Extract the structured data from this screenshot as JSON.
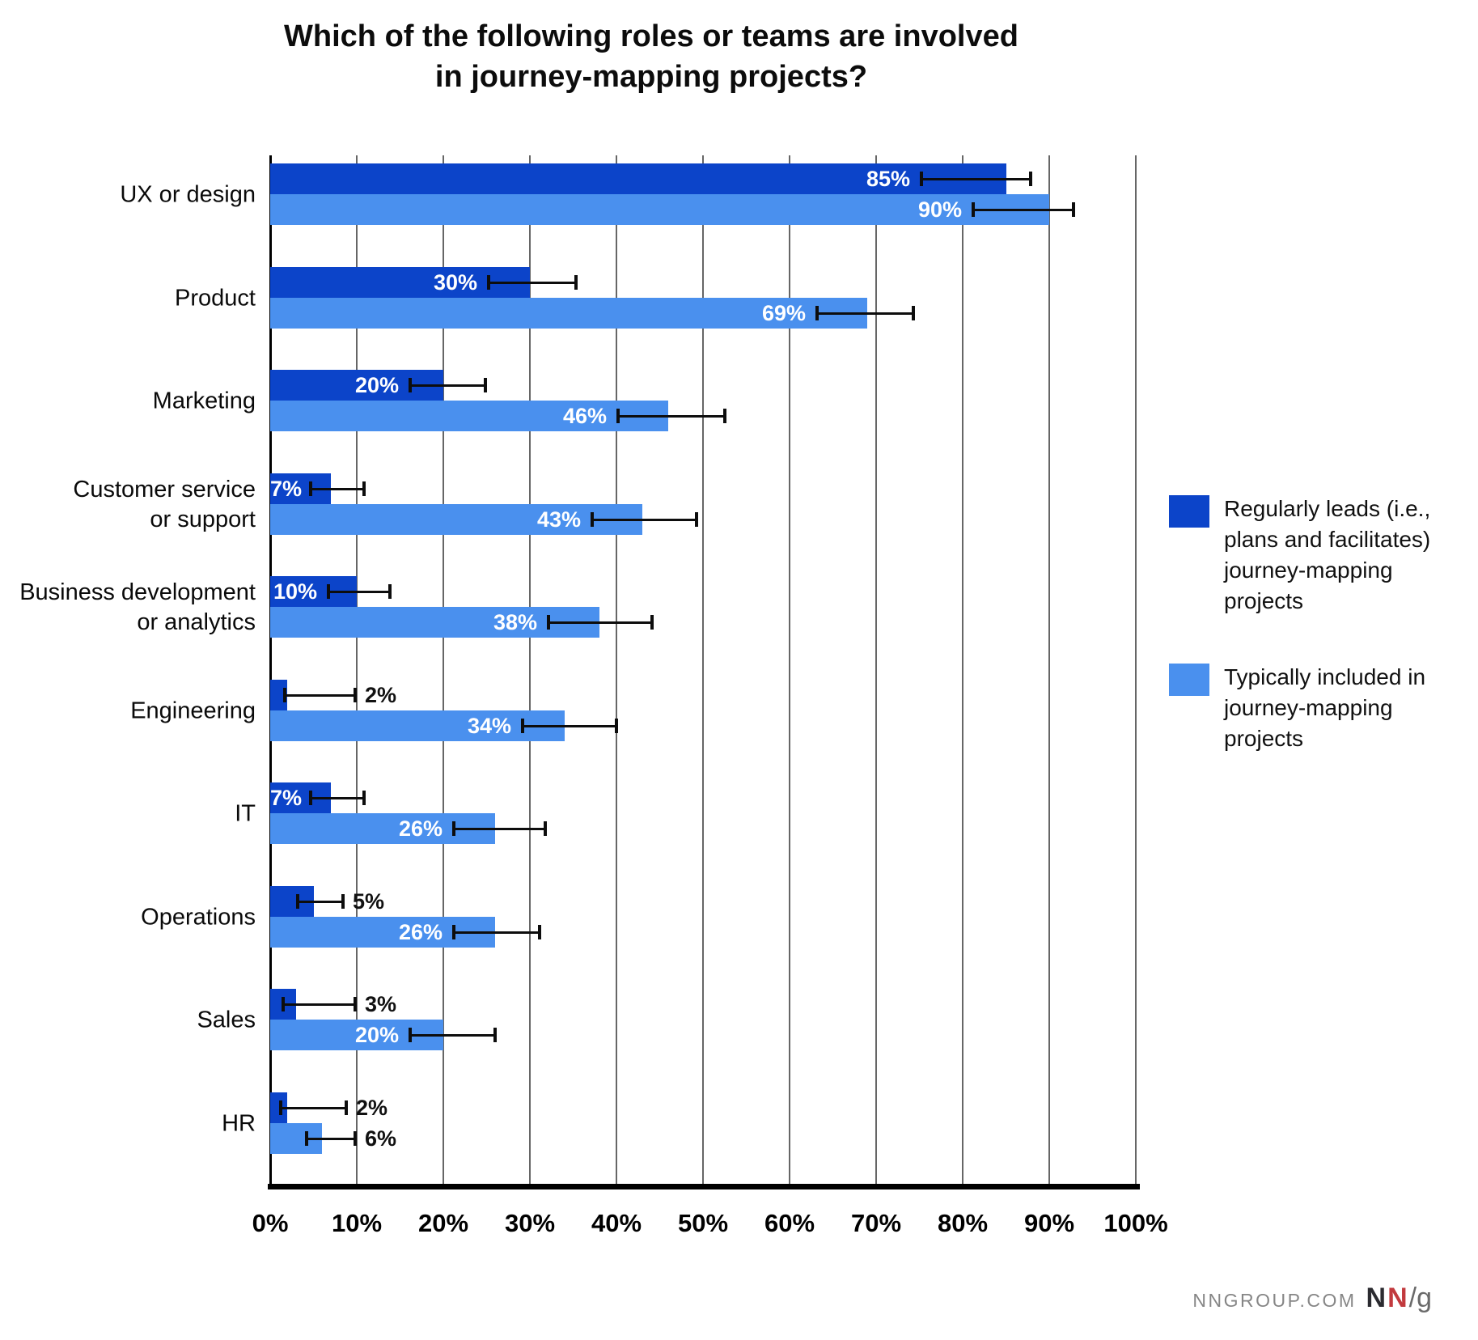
{
  "title": {
    "line1": "Which of the following roles or teams are involved",
    "line2": "in journey-mapping projects?"
  },
  "chart_data": {
    "type": "bar",
    "orientation": "horizontal",
    "title": "Which of the following roles or teams are involved in journey-mapping projects?",
    "xlabel": "",
    "ylabel": "",
    "xlim": [
      0,
      100
    ],
    "grid": true,
    "legend_position": "right",
    "value_suffix": "%",
    "label_inside_threshold": 7,
    "categories": [
      [
        "UX or design"
      ],
      [
        "Product"
      ],
      [
        "Marketing"
      ],
      [
        "Customer service",
        "or support"
      ],
      [
        "Business development",
        "or analytics"
      ],
      [
        "Engineering"
      ],
      [
        "IT"
      ],
      [
        "Operations"
      ],
      [
        "Sales"
      ],
      [
        "HR"
      ]
    ],
    "series": [
      {
        "name": "Regularly leads (i.e., plans and facilitates) journey-mapping projects",
        "color": "#0c44c9",
        "values": [
          85,
          30,
          20,
          7,
          10,
          2,
          7,
          5,
          3,
          2
        ],
        "labels": [
          "85%",
          "30%",
          "20%",
          "7%",
          "10%",
          "2%",
          "7%",
          "5%",
          "3%",
          "2%"
        ],
        "error_low": [
          75,
          25,
          16,
          4.5,
          6.5,
          1.5,
          4.5,
          3,
          1.3,
          1
        ],
        "error_high": [
          88,
          35.5,
          25,
          11,
          14,
          10,
          11,
          8.6,
          10,
          9
        ]
      },
      {
        "name": "Typically included in journey-mapping projects",
        "color": "#4a90ee",
        "values": [
          90,
          69,
          46,
          43,
          38,
          34,
          26,
          26,
          20,
          6
        ],
        "labels": [
          "90%",
          "69%",
          "46%",
          "43%",
          "38%",
          "34%",
          "26%",
          "26%",
          "20%",
          "6%"
        ],
        "error_low": [
          81,
          63,
          40,
          37,
          32,
          29,
          21,
          21,
          16,
          4
        ],
        "error_high": [
          93,
          74.5,
          52.7,
          49.4,
          44.3,
          40.2,
          32,
          31.3,
          26.2,
          10
        ]
      }
    ],
    "xticks": [
      "0%",
      "10%",
      "20%",
      "30%",
      "40%",
      "50%",
      "60%",
      "70%",
      "80%",
      "90%",
      "100%"
    ]
  },
  "legend": {
    "items": [
      {
        "color": "#0c44c9",
        "lines": [
          "Regularly leads (i.e.,",
          "plans and facilitates)",
          "journey-mapping",
          "projects"
        ]
      },
      {
        "color": "#4a90ee",
        "lines": [
          "Typically included in",
          "journey-mapping",
          "projects"
        ]
      }
    ]
  },
  "footer": {
    "site": "NNGROUP.COM",
    "logo_n1": "N",
    "logo_n2": "N",
    "logo_sg": "/g",
    "logo_red": "#c23a3e"
  }
}
